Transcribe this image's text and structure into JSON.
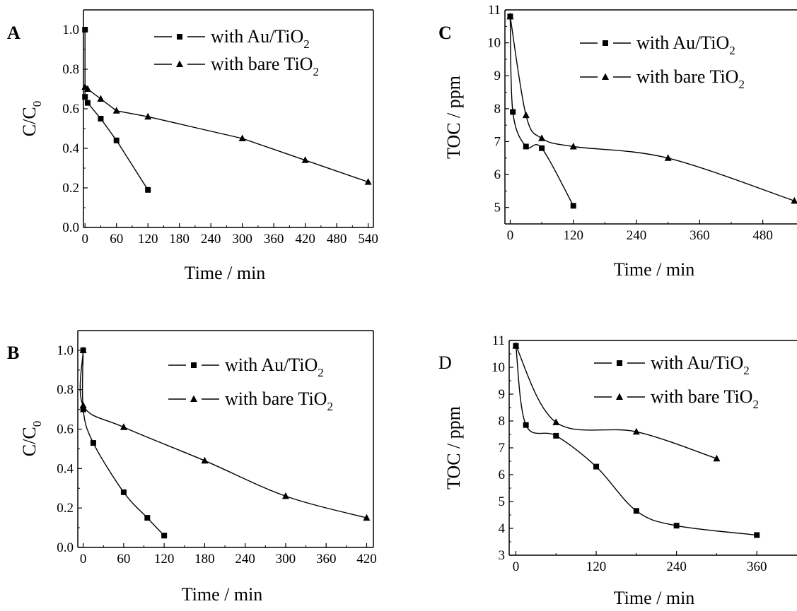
{
  "chart_data": [
    {
      "panel": "A",
      "type": "line",
      "xlabel": "Time / min",
      "ylabel_main": "C/C",
      "ylabel_sub": "0",
      "xlim": [
        -3,
        550
      ],
      "ylim": [
        0,
        1.1
      ],
      "xticks": [
        0,
        60,
        120,
        180,
        240,
        300,
        360,
        420,
        480,
        540
      ],
      "yticks": [
        0.0,
        0.2,
        0.4,
        0.6,
        0.8,
        1.0
      ],
      "ydecimals": 1,
      "grid": false,
      "legend_position": "top-right",
      "series": [
        {
          "name_main": "with Au/TiO",
          "name_sub": "2",
          "marker": "square",
          "x": [
            0,
            0,
            5,
            30,
            60,
            120
          ],
          "y": [
            1.0,
            0.66,
            0.63,
            0.55,
            0.44,
            0.19
          ]
        },
        {
          "name_main": "with bare TiO",
          "name_sub": "2",
          "marker": "triangle",
          "x": [
            0,
            5,
            30,
            60,
            120,
            300,
            420,
            540
          ],
          "y": [
            0.71,
            0.7,
            0.65,
            0.59,
            0.56,
            0.45,
            0.34,
            0.23
          ]
        }
      ]
    },
    {
      "panel": "B",
      "type": "line",
      "xlabel": "Time / min",
      "ylabel_main": "C/C",
      "ylabel_sub": "0",
      "xlim": [
        -8,
        430
      ],
      "ylim": [
        0,
        1.1
      ],
      "xticks": [
        0,
        60,
        120,
        180,
        240,
        300,
        360,
        420
      ],
      "yticks": [
        0.0,
        0.2,
        0.4,
        0.6,
        0.8,
        1.0
      ],
      "ydecimals": 1,
      "grid": false,
      "legend_position": "top-right",
      "series": [
        {
          "name_main": "with Au/TiO",
          "name_sub": "2",
          "marker": "square",
          "x": [
            0,
            0,
            15,
            60,
            95,
            120
          ],
          "y": [
            1.0,
            0.7,
            0.53,
            0.28,
            0.15,
            0.06
          ]
        },
        {
          "name_main": "with bare TiO",
          "name_sub": "2",
          "marker": "triangle",
          "x": [
            0,
            0,
            60,
            180,
            300,
            420
          ],
          "y": [
            1.0,
            0.72,
            0.61,
            0.44,
            0.26,
            0.15
          ]
        }
      ]
    },
    {
      "panel": "C",
      "type": "line",
      "xlabel": "Time / min",
      "ylabel": "TOC / ppm",
      "xlim": [
        -10,
        545
      ],
      "ylim": [
        4.5,
        11
      ],
      "xticks": [
        0,
        120,
        240,
        360,
        480
      ],
      "yticks": [
        5,
        6,
        7,
        8,
        9,
        10,
        11
      ],
      "ydecimals": 0,
      "grid": false,
      "legend_position": "top-right",
      "series": [
        {
          "name_main": "with Au/TiO",
          "name_sub": "2",
          "marker": "square",
          "x": [
            0,
            5,
            30,
            60,
            120
          ],
          "y": [
            10.8,
            7.9,
            6.85,
            6.8,
            5.05
          ]
        },
        {
          "name_main": "with bare TiO",
          "name_sub": "2",
          "marker": "triangle",
          "x": [
            0,
            30,
            60,
            120,
            300,
            540
          ],
          "y": [
            10.8,
            7.8,
            7.1,
            6.85,
            6.5,
            5.2
          ]
        }
      ]
    },
    {
      "panel": "D",
      "type": "line",
      "xlabel": "Time / min",
      "ylabel": "TOC / ppm",
      "xlim": [
        -10,
        420
      ],
      "ylim": [
        3,
        11
      ],
      "xticks": [
        0,
        120,
        240,
        360
      ],
      "yticks": [
        3,
        4,
        5,
        6,
        7,
        8,
        9,
        10,
        11
      ],
      "ydecimals": 0,
      "grid": false,
      "legend_position": "top-right",
      "series": [
        {
          "name_main": "with Au/TiO",
          "name_sub": "2",
          "marker": "square",
          "x": [
            0,
            15,
            60,
            120,
            180,
            240,
            360
          ],
          "y": [
            10.8,
            7.85,
            7.45,
            6.3,
            4.65,
            4.1,
            3.75
          ]
        },
        {
          "name_main": "with bare TiO",
          "name_sub": "2",
          "marker": "triangle",
          "x": [
            0,
            60,
            180,
            300
          ],
          "y": [
            10.8,
            7.95,
            7.6,
            6.6
          ]
        }
      ]
    }
  ]
}
